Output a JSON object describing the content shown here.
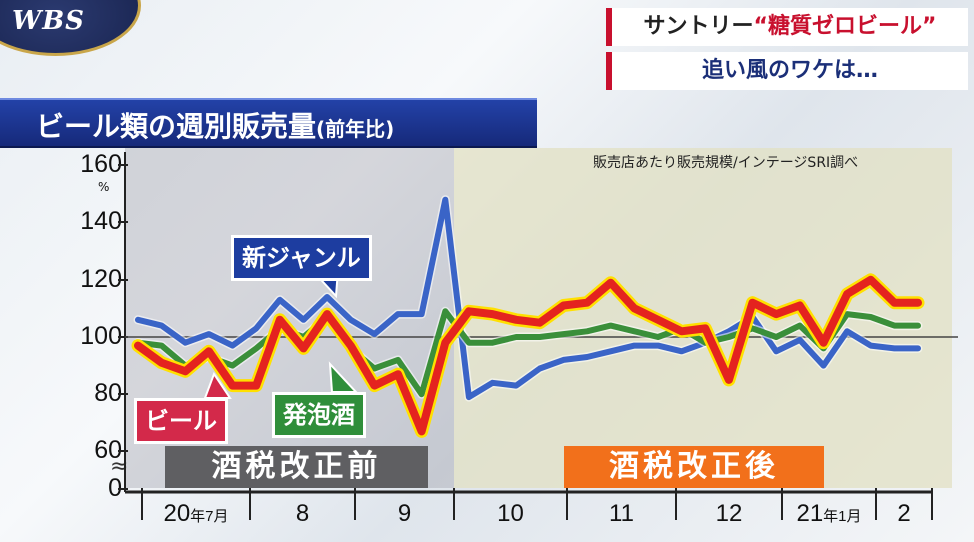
{
  "logo": {
    "text": "WBS"
  },
  "headline": {
    "line1_prefix": "サントリー",
    "line1_accent": "“糖質ゼロビール”",
    "line2": "追い風のワケは…"
  },
  "colors": {
    "new_genre": "#3a64c7",
    "beer": "#e4231f",
    "happoshu": "#3a8f3a",
    "highlight": "#ffe000"
  },
  "chart_data": {
    "type": "line",
    "title": "ビール類の週別販売量",
    "title_suffix": "(前年比)",
    "source": "販売店あたり販売規模/インテージSRI調べ",
    "y_unit": "%",
    "yticks": [
      "160",
      "140",
      "120",
      "100",
      "80",
      "60",
      "0"
    ],
    "ylim": [
      60,
      160
    ],
    "axis_break": "≈",
    "reference_line": 100,
    "x": [
      0,
      1,
      2,
      3,
      4,
      5,
      6,
      7,
      8,
      9,
      10,
      11,
      12,
      13,
      14,
      15,
      16,
      17,
      18,
      19,
      20,
      21,
      22,
      23,
      24,
      25,
      26,
      27,
      28,
      29,
      30,
      31,
      32,
      33
    ],
    "x_tick_labels": [
      {
        "text": "20",
        "small": "年7月"
      },
      {
        "text": "8"
      },
      {
        "text": "9"
      },
      {
        "text": "10"
      },
      {
        "text": "11"
      },
      {
        "text": "12"
      },
      {
        "text": "21",
        "small": "年1月"
      },
      {
        "text": "2"
      }
    ],
    "periods": [
      {
        "label": "酒税改正前",
        "x_end": 13.5
      },
      {
        "label": "酒税改正後",
        "x_start": 13.5
      }
    ],
    "series": [
      {
        "name": "新ジャンル",
        "color": "#3a64c7",
        "values": [
          106,
          104,
          98,
          101,
          97,
          103,
          113,
          106,
          114,
          106,
          101,
          108,
          108,
          148,
          79,
          84,
          83,
          89,
          92,
          93,
          95,
          97,
          97,
          95,
          98,
          102,
          107,
          95,
          99,
          90,
          102,
          97,
          96,
          96
        ]
      },
      {
        "name": "発泡酒",
        "color": "#3a8f3a",
        "values": [
          98,
          97,
          90,
          93,
          90,
          96,
          103,
          100,
          107,
          96,
          89,
          92,
          80,
          109,
          98,
          98,
          100,
          100,
          101,
          102,
          104,
          102,
          100,
          103,
          98,
          100,
          103,
          100,
          104,
          96,
          108,
          107,
          104,
          104
        ]
      },
      {
        "name": "ビール",
        "color": "#e4231f",
        "values": [
          97,
          91,
          88,
          95,
          83,
          83,
          106,
          96,
          108,
          97,
          83,
          87,
          67,
          98,
          109,
          108,
          106,
          105,
          111,
          112,
          119,
          110,
          106,
          102,
          103,
          85,
          112,
          108,
          111,
          98,
          115,
          120,
          112,
          112
        ]
      }
    ]
  }
}
